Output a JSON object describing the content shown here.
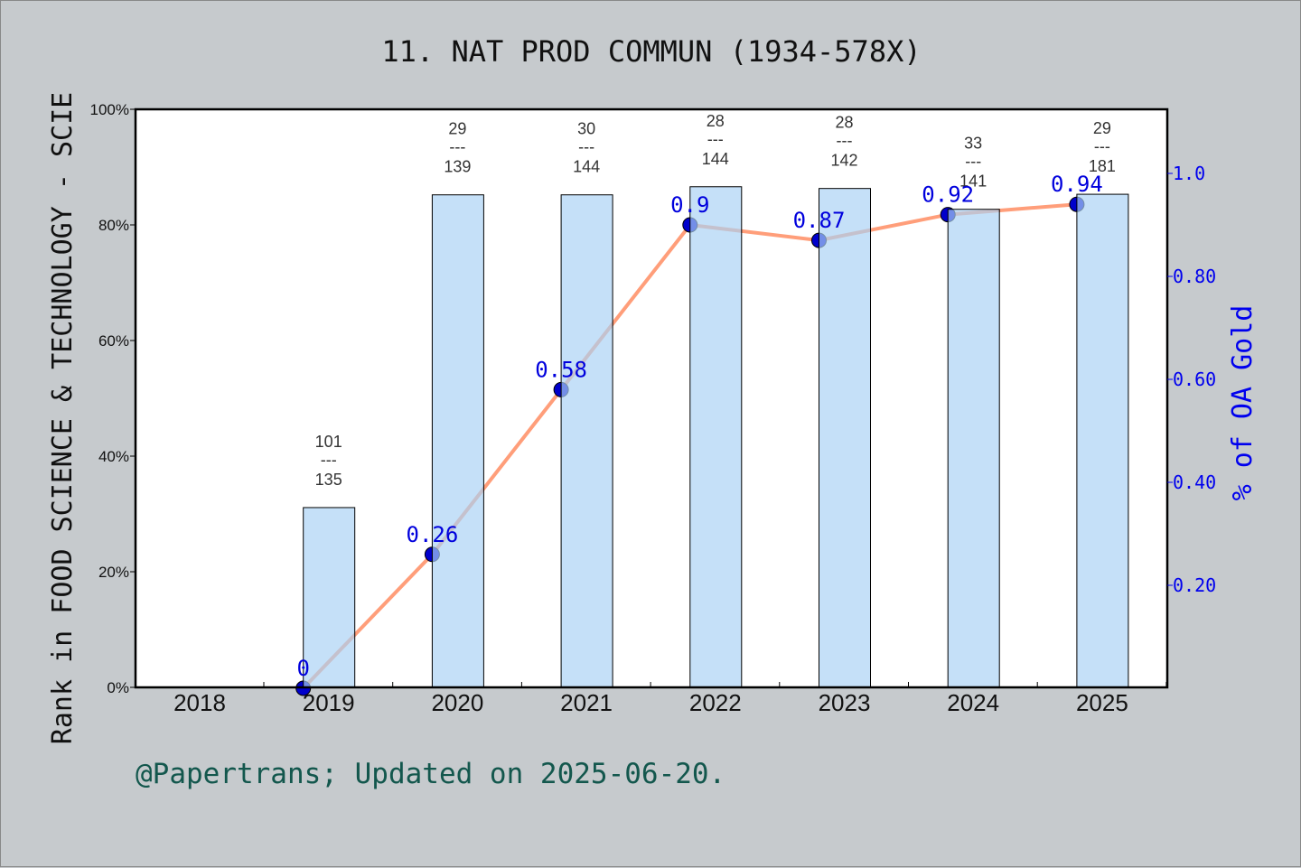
{
  "chart_data": {
    "type": "bar+line",
    "title": "11. NAT PROD COMMUN (1934-578X)",
    "ylabel": "Rank in FOOD SCIENCE & TECHNOLOGY - SCIE",
    "y2label": "% of OA Gold",
    "categories": [
      "2018",
      "2019",
      "2020",
      "2021",
      "2022",
      "2023",
      "2024",
      "2025"
    ],
    "ylim": [
      0,
      100
    ],
    "yticks": [
      "0%",
      "20%",
      "40%",
      "60%",
      "80%",
      "100%"
    ],
    "y2lim": [
      0,
      1.12
    ],
    "y2ticks": [
      "0.20",
      "0.40",
      "0.60",
      "0.80",
      "1.0"
    ],
    "y2tick_values": [
      0.2,
      0.4,
      0.6,
      0.8,
      1.0
    ],
    "bars": {
      "values": [
        null,
        31.1,
        85.2,
        85.2,
        86.6,
        86.3,
        82.7,
        85.3
      ],
      "color": "#c5e0f7"
    },
    "rank_labels": [
      null,
      {
        "rank": "101",
        "total": "135"
      },
      {
        "rank": "29",
        "total": "139"
      },
      {
        "rank": "30",
        "total": "144"
      },
      {
        "rank": "28",
        "total": "144"
      },
      {
        "rank": "28",
        "total": "142"
      },
      {
        "rank": "33",
        "total": "141"
      },
      {
        "rank": "29",
        "total": "181"
      }
    ],
    "rank_separator": "---",
    "line": {
      "values": [
        null,
        0,
        0.26,
        0.58,
        0.9,
        0.87,
        0.92,
        0.94
      ],
      "labels": [
        null,
        "0",
        "0.26",
        "0.58",
        "0.9",
        "0.87",
        "0.92",
        "0.94"
      ],
      "color": "#ff9e7a",
      "marker_color": "#0000cc"
    }
  },
  "footer": "@Papertrans; Updated on 2025-06-20."
}
